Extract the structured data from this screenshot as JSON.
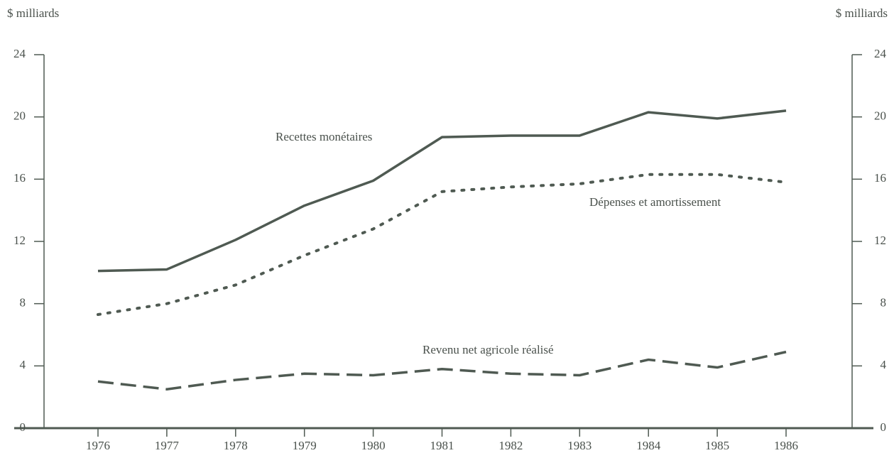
{
  "chart_data": {
    "type": "line",
    "ylabel": "$ milliards",
    "y2label": "$ milliards",
    "categories": [
      "1976",
      "1977",
      "1978",
      "1979",
      "1980",
      "1981",
      "1982",
      "1983",
      "1984",
      "1985",
      "1986"
    ],
    "series": [
      {
        "name": "Recettes monétaires",
        "color": "#4f5a52",
        "line_style": "solid",
        "values": [
          10.1,
          10.2,
          12.1,
          14.3,
          15.9,
          18.7,
          18.8,
          18.8,
          20.3,
          19.9,
          20.4
        ]
      },
      {
        "name": "Dépenses et amortissement",
        "color": "#4f5a52",
        "line_style": "dotted",
        "values": [
          7.3,
          8.0,
          9.2,
          11.1,
          12.8,
          15.2,
          15.5,
          15.7,
          16.3,
          16.3,
          15.8
        ]
      },
      {
        "name": "Revenu net agricole réalisé",
        "color": "#4f5a52",
        "line_style": "dashed",
        "values": [
          3.0,
          2.5,
          3.1,
          3.5,
          3.4,
          3.8,
          3.5,
          3.4,
          4.4,
          3.9,
          4.9
        ]
      }
    ],
    "ylim": [
      0,
      24
    ],
    "yticks": [
      0,
      4,
      8,
      12,
      16,
      20,
      24
    ],
    "y2lim": [
      0,
      24
    ],
    "y2ticks": [
      0,
      4,
      8,
      12,
      16,
      20,
      24
    ],
    "grid": false
  }
}
